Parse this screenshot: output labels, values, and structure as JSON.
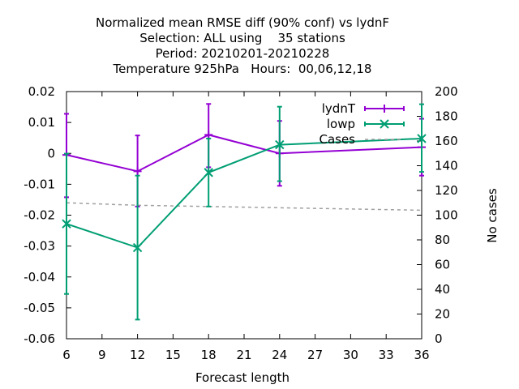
{
  "chart_data": {
    "type": "line",
    "title_lines": [
      "Normalized mean RMSE diff (90% conf) vs lydnF",
      "Selection: ALL using    35 stations",
      "Period: 20210201-20210228",
      "Temperature 925hPa   Hours:  00,06,12,18"
    ],
    "xlabel": "Forecast length",
    "ylabel": "",
    "y2label": "No cases",
    "xlim": [
      6,
      36
    ],
    "ylim": [
      -0.06,
      0.02
    ],
    "y2lim": [
      0,
      200
    ],
    "xticks": [
      "6",
      "9",
      "12",
      "15",
      "18",
      "21",
      "24",
      "27",
      "30",
      "33",
      "36"
    ],
    "yticks": [
      "0.02",
      "0.01",
      "0",
      "-0.01",
      "-0.02",
      "-0.03",
      "-0.04",
      "-0.05",
      "-0.06"
    ],
    "y2ticks": [
      "200",
      "180",
      "160",
      "140",
      "120",
      "100",
      "80",
      "60",
      "40",
      "20",
      "0"
    ],
    "grid": false,
    "legend_position": "top-right",
    "series": [
      {
        "name": "lydnT",
        "color": "#9400d3",
        "marker": "plus",
        "x": [
          6,
          12,
          18,
          24,
          36
        ],
        "y": [
          -0.0005,
          -0.0058,
          0.006,
          0.0,
          0.002
        ],
        "err_low": [
          -0.0142,
          -0.0172,
          -0.0045,
          -0.0105,
          -0.0072
        ],
        "err_high": [
          0.0128,
          0.0058,
          0.016,
          0.0105,
          0.0112
        ]
      },
      {
        "name": "lowp",
        "color": "#009e73",
        "marker": "x",
        "x": [
          6,
          12,
          18,
          24,
          36
        ],
        "y": [
          -0.0228,
          -0.0305,
          -0.0062,
          0.0028,
          0.0048
        ],
        "err_low": [
          -0.0455,
          -0.0538,
          -0.0172,
          -0.009,
          -0.006
        ],
        "err_high": [
          -0.0001,
          -0.0072,
          0.0048,
          0.0151,
          0.0159
        ]
      },
      {
        "name": "Cases",
        "color": "#a0a0a0",
        "style": "dashed",
        "axis": "y2",
        "x": [
          6,
          12,
          18,
          24,
          30,
          36
        ],
        "y": [
          110,
          108,
          107,
          106,
          105,
          104
        ]
      }
    ]
  }
}
